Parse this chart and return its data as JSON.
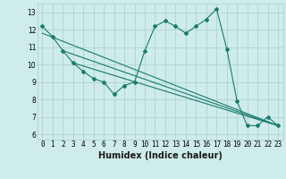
{
  "title": "",
  "xlabel": "Humidex (Indice chaleur)",
  "background_color": "#ceecea",
  "grid_color": "#aed4d0",
  "line_color": "#1a7a6e",
  "xlim": [
    -0.5,
    23.5
  ],
  "ylim": [
    5.7,
    13.5
  ],
  "yticks": [
    6,
    7,
    8,
    9,
    10,
    11,
    12,
    13
  ],
  "xticks": [
    0,
    1,
    2,
    3,
    4,
    5,
    6,
    7,
    8,
    9,
    10,
    11,
    12,
    13,
    14,
    15,
    16,
    17,
    18,
    19,
    20,
    21,
    22,
    23
  ],
  "xtick_labels": [
    "0",
    "1",
    "2",
    "3",
    "4",
    "5",
    "6",
    "7",
    "8",
    "9",
    "10",
    "11",
    "12",
    "13",
    "14",
    "15",
    "16",
    "17",
    "18",
    "19",
    "20",
    "21",
    "22",
    "23"
  ],
  "series1_x": [
    0,
    1,
    2,
    3,
    4,
    5,
    6,
    7,
    8,
    9,
    10,
    11,
    12,
    13,
    14,
    15,
    16,
    17,
    18,
    19,
    20,
    21,
    22,
    23
  ],
  "series1_y": [
    12.2,
    11.6,
    10.8,
    10.1,
    9.6,
    9.2,
    9.0,
    8.3,
    8.8,
    9.0,
    10.8,
    12.2,
    12.5,
    12.2,
    11.8,
    12.2,
    12.6,
    13.2,
    10.9,
    7.9,
    6.5,
    6.5,
    7.0,
    6.5
  ],
  "series2_x": [
    0,
    23
  ],
  "series2_y": [
    11.8,
    6.5
  ],
  "series3_x": [
    2,
    23
  ],
  "series3_y": [
    10.8,
    6.5
  ],
  "series4_x": [
    3,
    23
  ],
  "series4_y": [
    10.1,
    6.5
  ],
  "tick_fontsize": 5.5,
  "xlabel_fontsize": 7,
  "linewidth": 0.8,
  "markersize": 2.0
}
